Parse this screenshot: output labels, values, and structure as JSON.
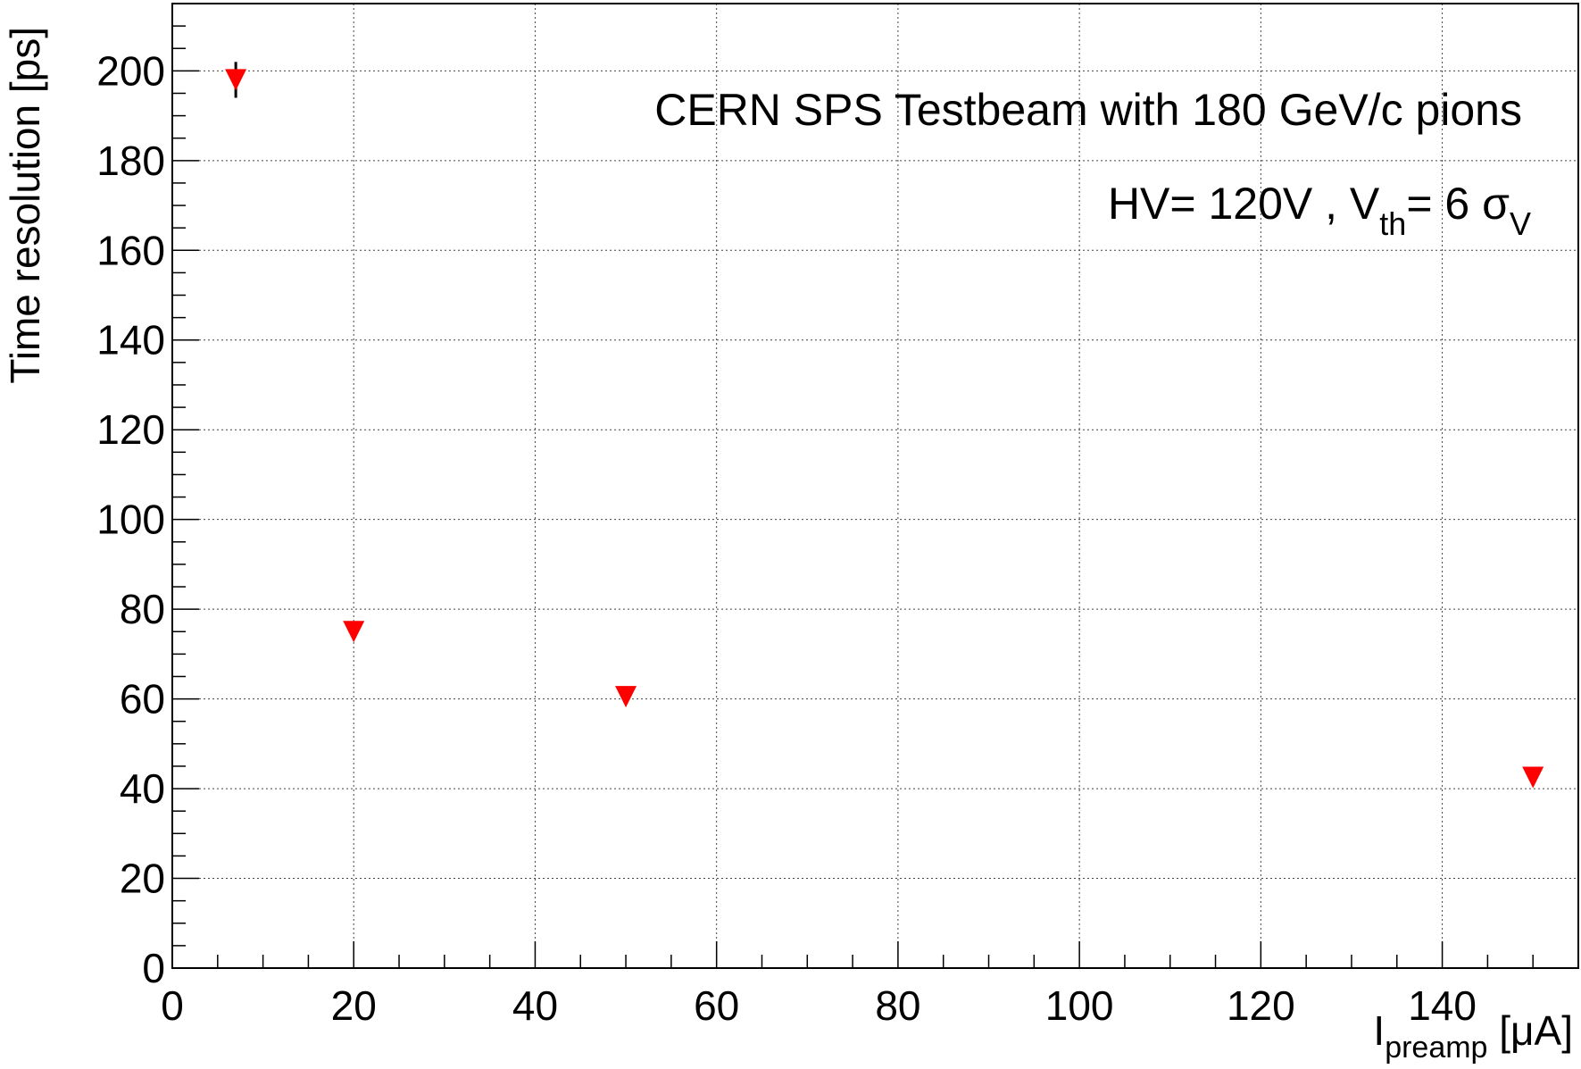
{
  "chart_data": {
    "type": "scatter",
    "title": "",
    "annotations": {
      "line1": "CERN SPS Testbeam with 180 GeV/c pions",
      "line2": {
        "hv": "HV= 120V , V",
        "vth_sub": "th",
        "eq": "= 6 ",
        "sigma": "σ",
        "sigma_sub": "V"
      }
    },
    "xlabel": {
      "main": "I",
      "sub": "preamp",
      "unit": " [μA]"
    },
    "ylabel": "Time resolution [ps]",
    "xlim": [
      0,
      155
    ],
    "ylim": [
      0,
      215
    ],
    "x_ticks": [
      0,
      20,
      40,
      60,
      80,
      100,
      120,
      140
    ],
    "y_ticks": [
      0,
      20,
      40,
      60,
      80,
      100,
      120,
      140,
      160,
      180,
      200
    ],
    "x_minor_step": 5,
    "y_minor_step": 5,
    "grid": true,
    "marker": "triangle-down",
    "series": [
      {
        "color": "#ff0000",
        "points": [
          {
            "x": 7,
            "y": 198,
            "yerr": 4
          },
          {
            "x": 20,
            "y": 75,
            "yerr": 0
          },
          {
            "x": 50,
            "y": 60.5,
            "yerr": 0
          },
          {
            "x": 150,
            "y": 42.5,
            "yerr": 0
          }
        ]
      }
    ]
  }
}
